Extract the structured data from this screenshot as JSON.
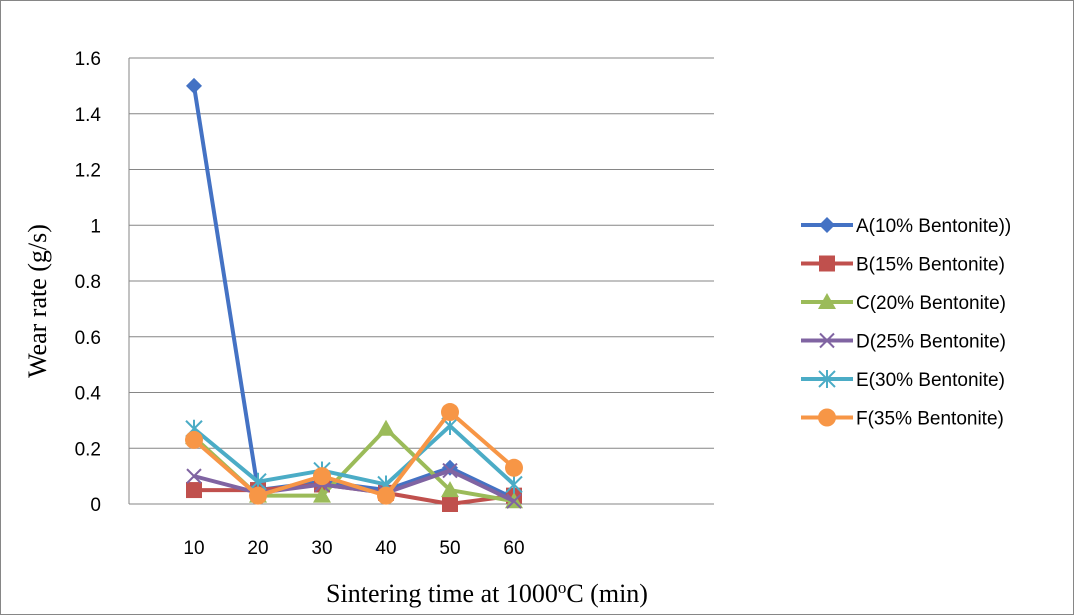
{
  "chart_data": {
    "type": "line",
    "xlabel_main": "Sintering time at 1000",
    "xlabel_sup": "o",
    "xlabel_tail": "C (min)",
    "ylabel": "Wear rate (g/s)",
    "categories": [
      "10",
      "20",
      "30",
      "40",
      "50",
      "60"
    ],
    "ylim": [
      0,
      1.6
    ],
    "yticks": [
      "0",
      "0.2",
      "0.4",
      "0.6",
      "0.8",
      "1",
      "1.2",
      "1.4",
      "1.6"
    ],
    "grid": true,
    "legend_position": "right",
    "series": [
      {
        "name": "A(10% Bentonite))",
        "color": "#4472C4",
        "marker": "diamond",
        "values": [
          1.5,
          0.05,
          0.08,
          0.05,
          0.13,
          0.02
        ]
      },
      {
        "name": "B(15% Bentonite)",
        "color": "#C0504D",
        "marker": "square",
        "values": [
          0.05,
          0.05,
          0.07,
          0.04,
          0.0,
          0.03
        ]
      },
      {
        "name": "C(20% Bentonite)",
        "color": "#9BBB59",
        "marker": "triangle",
        "values": [
          0.24,
          0.03,
          0.03,
          0.27,
          0.05,
          0.01
        ]
      },
      {
        "name": "D(25% Bentonite)",
        "color": "#8064A2",
        "marker": "x",
        "values": [
          0.1,
          0.04,
          0.07,
          0.04,
          0.12,
          0.01
        ]
      },
      {
        "name": "E(30% Bentonite)",
        "color": "#4BACC6",
        "marker": "star",
        "values": [
          0.27,
          0.08,
          0.12,
          0.07,
          0.28,
          0.07
        ]
      },
      {
        "name": "F(35% Bentonite)",
        "color": "#F79646",
        "marker": "circle",
        "values": [
          0.23,
          0.03,
          0.1,
          0.03,
          0.33,
          0.13
        ]
      }
    ]
  }
}
